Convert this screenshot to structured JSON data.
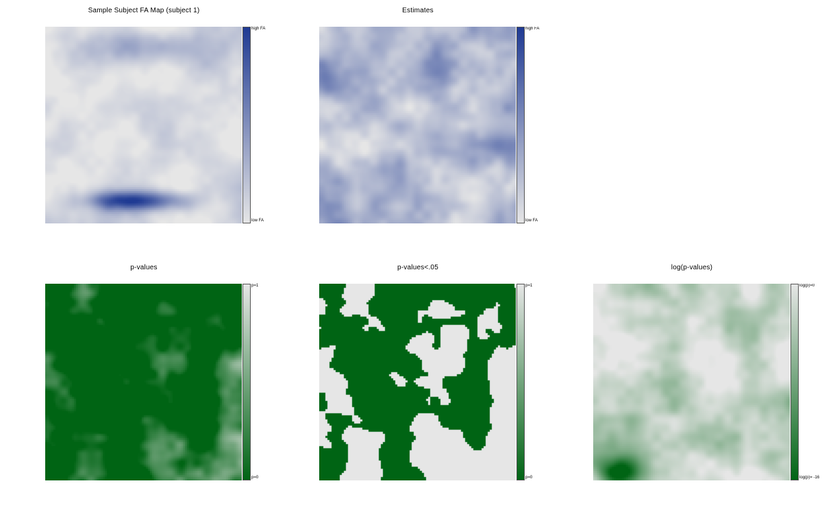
{
  "chart_data": [
    {
      "type": "heatmap",
      "title": "Sample Subject FA Map (subject 1)",
      "colorbar": {
        "top_label": "high FA",
        "bottom_label": "low FA",
        "low_color": "#e6e6e6",
        "high_color": "#1f3a93"
      },
      "grid": false
    },
    {
      "type": "heatmap",
      "title": "Estimates",
      "colorbar": {
        "top_label": "high FA",
        "bottom_label": "low FA",
        "low_color": "#e6e6e6",
        "high_color": "#1f3a93"
      },
      "grid": false
    },
    {
      "type": "heatmap",
      "title": "p-values",
      "colorbar": {
        "top_label": "p=1",
        "bottom_label": "p=0",
        "low_color": "#006414",
        "high_color": "#e6e6e6"
      },
      "grid": false
    },
    {
      "type": "heatmap",
      "title": "p-values<.05",
      "colorbar": {
        "top_label": "p=1",
        "bottom_label": "p=0",
        "low_color": "#006414",
        "high_color": "#e6e6e6"
      },
      "grid": false
    },
    {
      "type": "heatmap",
      "title": "log(p-values)",
      "colorbar": {
        "top_label": "log(p)=0",
        "bottom_label": "log(p)= -16",
        "low_color": "#006414",
        "high_color": "#e6e6e6"
      },
      "grid": false
    }
  ]
}
